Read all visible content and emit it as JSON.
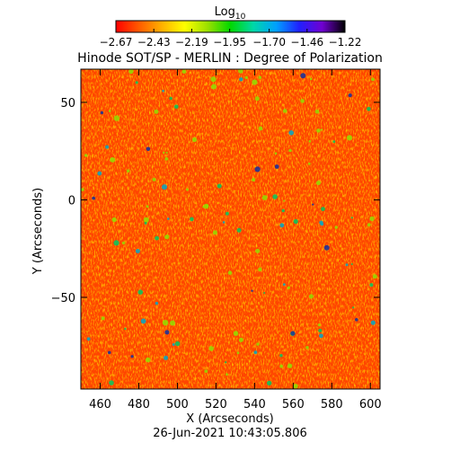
{
  "chart_data": {
    "type": "heatmap",
    "title": "Hinode SOT/SP - MERLIN : Degree of Polarization",
    "xlabel": "X (Arcseconds)",
    "ylabel": "Y (Arcseconds)",
    "timestamp": "26-Jun-2021 10:43:05.806",
    "colorbar": {
      "label_main": "Log",
      "label_sub": "10",
      "range": [
        -2.67,
        -1.22
      ],
      "ticks": [
        "-2.67",
        "-2.43",
        "-2.19",
        "-1.95",
        "-1.70",
        "-1.46",
        "-1.22"
      ],
      "colormap": [
        "#ff0000",
        "#ff5a00",
        "#ffb000",
        "#ffff00",
        "#9be000",
        "#00d800",
        "#00d8a8",
        "#00a0ff",
        "#2020ff",
        "#7000d0",
        "#000000"
      ]
    },
    "xlim": [
      450,
      605
    ],
    "ylim": [
      -97,
      67
    ],
    "xticks": [
      460,
      480,
      500,
      520,
      540,
      560,
      580,
      600
    ],
    "yticks": [
      -50,
      0,
      50
    ],
    "xtick_labels": [
      "460",
      "480",
      "500",
      "520",
      "540",
      "560",
      "580",
      "600"
    ],
    "ytick_labels": [
      "-50",
      "0",
      "50"
    ],
    "field": {
      "dominant_log_value": -2.6,
      "description_values": [
        -2.67,
        -2.5,
        -2.35
      ]
    }
  }
}
